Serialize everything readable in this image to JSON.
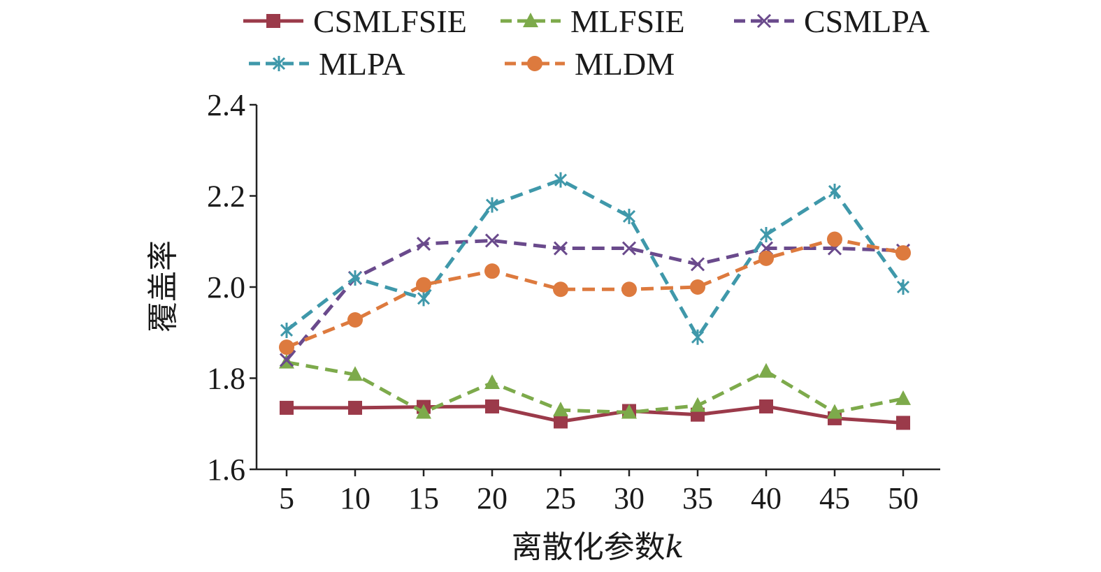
{
  "chart_data": {
    "type": "line",
    "title": "",
    "xlabel": "离散化参数",
    "xlabel_var": "k",
    "ylabel": "覆盖率",
    "x": [
      5,
      10,
      15,
      20,
      25,
      30,
      35,
      40,
      45,
      50
    ],
    "x_tick_labels": [
      "5",
      "10",
      "15",
      "20",
      "25",
      "30",
      "35",
      "40",
      "45",
      "50"
    ],
    "ylim": [
      1.6,
      2.4
    ],
    "y_ticks": [
      1.6,
      1.8,
      2.0,
      2.2,
      2.4
    ],
    "y_tick_labels": [
      "1.6",
      "1.8",
      "2.0",
      "2.2",
      "2.4"
    ],
    "grid": false,
    "legend_position": "top",
    "series": [
      {
        "name": "CSMLFSIE",
        "color": "#9b3a4a",
        "dash": "solid",
        "marker": "square",
        "values": [
          1.735,
          1.735,
          1.737,
          1.738,
          1.705,
          1.728,
          1.72,
          1.738,
          1.712,
          1.702
        ]
      },
      {
        "name": "MLFSIE",
        "color": "#7daa4b",
        "dash": "dashed",
        "marker": "triangle",
        "values": [
          1.835,
          1.808,
          1.725,
          1.79,
          1.73,
          1.725,
          1.74,
          1.815,
          1.725,
          1.755
        ]
      },
      {
        "name": "CSMLPA",
        "color": "#6a4a8c",
        "dash": "dashed",
        "marker": "x",
        "values": [
          1.84,
          2.02,
          2.095,
          2.102,
          2.085,
          2.085,
          2.05,
          2.085,
          2.085,
          2.08
        ]
      },
      {
        "name": "MLPA",
        "color": "#3f98aa",
        "dash": "dashed",
        "marker": "asterisk",
        "values": [
          1.905,
          2.02,
          1.975,
          2.18,
          2.235,
          2.155,
          1.89,
          2.115,
          2.21,
          2.0
        ]
      },
      {
        "name": "MLDM",
        "color": "#dd7a3e",
        "dash": "dashed",
        "marker": "circle",
        "values": [
          1.868,
          1.928,
          2.005,
          2.035,
          1.995,
          1.995,
          2.0,
          2.063,
          2.105,
          2.075
        ]
      }
    ]
  }
}
